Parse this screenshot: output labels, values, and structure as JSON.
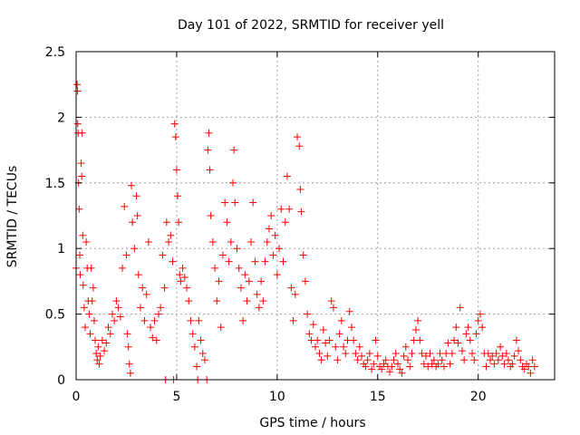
{
  "chart_data": {
    "type": "scatter",
    "title": "Day 101 of 2022, SRMTID for receiver yell",
    "xlabel": "GPS time / hours",
    "ylabel": "SRMTID / TECUs",
    "xlim": [
      0,
      23.8
    ],
    "ylim": [
      0,
      2.5
    ],
    "x_ticks": [
      0,
      5,
      10,
      15,
      20
    ],
    "x_tick_labels": [
      "0",
      "5",
      "10",
      "15",
      "20"
    ],
    "y_ticks": [
      0,
      0.5,
      1,
      1.5,
      2,
      2.5
    ],
    "y_tick_labels": [
      "0",
      "0.5",
      "1",
      "1.5",
      "2",
      "2.5"
    ],
    "grid": true,
    "marker": "+",
    "marker_color": "#ff0000",
    "series": [
      {
        "name": "SRMTID",
        "points": [
          [
            0.0,
            0.85
          ],
          [
            0.05,
            2.25
          ],
          [
            0.07,
            2.2
          ],
          [
            0.08,
            1.95
          ],
          [
            0.1,
            1.88
          ],
          [
            0.12,
            1.5
          ],
          [
            0.15,
            1.3
          ],
          [
            0.18,
            0.95
          ],
          [
            0.2,
            0.8
          ],
          [
            0.25,
            1.65
          ],
          [
            0.28,
            1.55
          ],
          [
            0.3,
            1.88
          ],
          [
            0.33,
            1.1
          ],
          [
            0.35,
            0.72
          ],
          [
            0.4,
            0.55
          ],
          [
            0.45,
            0.4
          ],
          [
            0.5,
            1.05
          ],
          [
            0.55,
            0.85
          ],
          [
            0.6,
            0.6
          ],
          [
            0.65,
            0.5
          ],
          [
            0.7,
            0.35
          ],
          [
            0.75,
            0.85
          ],
          [
            0.8,
            0.6
          ],
          [
            0.85,
            0.7
          ],
          [
            0.9,
            0.45
          ],
          [
            0.95,
            0.3
          ],
          [
            1.0,
            0.2
          ],
          [
            1.05,
            0.15
          ],
          [
            1.1,
            0.25
          ],
          [
            1.15,
            0.12
          ],
          [
            1.2,
            0.18
          ],
          [
            1.3,
            0.3
          ],
          [
            1.4,
            0.22
          ],
          [
            1.5,
            0.28
          ],
          [
            1.6,
            0.4
          ],
          [
            1.7,
            0.35
          ],
          [
            1.8,
            0.5
          ],
          [
            1.9,
            0.45
          ],
          [
            2.0,
            0.6
          ],
          [
            2.1,
            0.55
          ],
          [
            2.2,
            0.48
          ],
          [
            2.3,
            0.85
          ],
          [
            2.4,
            1.32
          ],
          [
            2.5,
            0.95
          ],
          [
            2.55,
            0.35
          ],
          [
            2.6,
            0.25
          ],
          [
            2.65,
            0.12
          ],
          [
            2.7,
            0.05
          ],
          [
            2.75,
            1.48
          ],
          [
            2.8,
            1.2
          ],
          [
            2.9,
            1.0
          ],
          [
            3.0,
            1.4
          ],
          [
            3.05,
            1.25
          ],
          [
            3.1,
            0.8
          ],
          [
            3.2,
            0.55
          ],
          [
            3.3,
            0.7
          ],
          [
            3.4,
            0.45
          ],
          [
            3.5,
            0.65
          ],
          [
            3.6,
            1.05
          ],
          [
            3.7,
            0.4
          ],
          [
            3.8,
            0.32
          ],
          [
            3.9,
            0.45
          ],
          [
            4.0,
            0.3
          ],
          [
            4.1,
            0.5
          ],
          [
            4.2,
            0.55
          ],
          [
            4.3,
            0.95
          ],
          [
            4.4,
            0.7
          ],
          [
            4.45,
            0.0
          ],
          [
            4.5,
            1.2
          ],
          [
            4.6,
            1.05
          ],
          [
            4.7,
            1.1
          ],
          [
            4.8,
            0.9
          ],
          [
            4.85,
            0.0
          ],
          [
            4.9,
            1.95
          ],
          [
            4.95,
            1.85
          ],
          [
            5.0,
            1.6
          ],
          [
            5.05,
            1.4
          ],
          [
            5.1,
            1.2
          ],
          [
            5.15,
            0.8
          ],
          [
            5.2,
            0.75
          ],
          [
            5.3,
            0.85
          ],
          [
            5.4,
            0.78
          ],
          [
            5.5,
            0.7
          ],
          [
            5.6,
            0.6
          ],
          [
            5.7,
            0.45
          ],
          [
            5.8,
            0.35
          ],
          [
            5.9,
            0.25
          ],
          [
            6.0,
            0.1
          ],
          [
            6.05,
            0.0
          ],
          [
            6.1,
            0.45
          ],
          [
            6.2,
            0.3
          ],
          [
            6.3,
            0.2
          ],
          [
            6.4,
            0.15
          ],
          [
            6.5,
            0.0
          ],
          [
            6.55,
            1.75
          ],
          [
            6.6,
            1.88
          ],
          [
            6.65,
            1.6
          ],
          [
            6.7,
            1.25
          ],
          [
            6.8,
            1.05
          ],
          [
            6.9,
            0.85
          ],
          [
            7.0,
            0.6
          ],
          [
            7.1,
            0.75
          ],
          [
            7.2,
            0.4
          ],
          [
            7.3,
            0.95
          ],
          [
            7.4,
            1.35
          ],
          [
            7.5,
            1.2
          ],
          [
            7.6,
            0.9
          ],
          [
            7.7,
            1.05
          ],
          [
            7.8,
            1.5
          ],
          [
            7.85,
            1.75
          ],
          [
            7.9,
            1.35
          ],
          [
            8.0,
            1.0
          ],
          [
            8.1,
            0.85
          ],
          [
            8.2,
            0.7
          ],
          [
            8.3,
            0.45
          ],
          [
            8.4,
            0.8
          ],
          [
            8.5,
            0.6
          ],
          [
            8.6,
            0.75
          ],
          [
            8.7,
            1.05
          ],
          [
            8.8,
            1.35
          ],
          [
            8.9,
            0.9
          ],
          [
            9.0,
            0.65
          ],
          [
            9.1,
            0.55
          ],
          [
            9.2,
            0.75
          ],
          [
            9.3,
            0.6
          ],
          [
            9.4,
            0.9
          ],
          [
            9.5,
            1.05
          ],
          [
            9.6,
            1.15
          ],
          [
            9.7,
            1.25
          ],
          [
            9.8,
            0.95
          ],
          [
            9.9,
            1.1
          ],
          [
            10.0,
            0.8
          ],
          [
            10.1,
            1.0
          ],
          [
            10.2,
            1.3
          ],
          [
            10.3,
            0.9
          ],
          [
            10.4,
            1.2
          ],
          [
            10.5,
            1.55
          ],
          [
            10.6,
            1.3
          ],
          [
            10.7,
            0.7
          ],
          [
            10.8,
            0.45
          ],
          [
            10.9,
            0.65
          ],
          [
            11.0,
            1.85
          ],
          [
            11.1,
            1.78
          ],
          [
            11.15,
            1.45
          ],
          [
            11.2,
            1.28
          ],
          [
            11.3,
            0.95
          ],
          [
            11.4,
            0.75
          ],
          [
            11.5,
            0.5
          ],
          [
            11.6,
            0.35
          ],
          [
            11.7,
            0.3
          ],
          [
            11.8,
            0.42
          ],
          [
            11.9,
            0.25
          ],
          [
            12.0,
            0.3
          ],
          [
            12.1,
            0.2
          ],
          [
            12.2,
            0.15
          ],
          [
            12.3,
            0.38
          ],
          [
            12.4,
            0.28
          ],
          [
            12.5,
            0.18
          ],
          [
            12.6,
            0.3
          ],
          [
            12.7,
            0.6
          ],
          [
            12.8,
            0.55
          ],
          [
            12.9,
            0.25
          ],
          [
            13.0,
            0.15
          ],
          [
            13.1,
            0.35
          ],
          [
            13.2,
            0.45
          ],
          [
            13.3,
            0.25
          ],
          [
            13.4,
            0.2
          ],
          [
            13.5,
            0.3
          ],
          [
            13.6,
            0.52
          ],
          [
            13.7,
            0.4
          ],
          [
            13.8,
            0.3
          ],
          [
            13.9,
            0.2
          ],
          [
            14.0,
            0.15
          ],
          [
            14.1,
            0.25
          ],
          [
            14.2,
            0.18
          ],
          [
            14.3,
            0.12
          ],
          [
            14.4,
            0.1
          ],
          [
            14.5,
            0.15
          ],
          [
            14.6,
            0.2
          ],
          [
            14.7,
            0.08
          ],
          [
            14.8,
            0.12
          ],
          [
            14.9,
            0.3
          ],
          [
            15.0,
            0.18
          ],
          [
            15.1,
            0.1
          ],
          [
            15.2,
            0.08
          ],
          [
            15.3,
            0.12
          ],
          [
            15.4,
            0.15
          ],
          [
            15.5,
            0.1
          ],
          [
            15.6,
            0.06
          ],
          [
            15.7,
            0.1
          ],
          [
            15.8,
            0.15
          ],
          [
            15.9,
            0.2
          ],
          [
            16.0,
            0.12
          ],
          [
            16.1,
            0.08
          ],
          [
            16.2,
            0.05
          ],
          [
            16.3,
            0.18
          ],
          [
            16.4,
            0.25
          ],
          [
            16.5,
            0.15
          ],
          [
            16.6,
            0.1
          ],
          [
            16.7,
            0.2
          ],
          [
            16.8,
            0.3
          ],
          [
            16.9,
            0.38
          ],
          [
            17.0,
            0.45
          ],
          [
            17.1,
            0.3
          ],
          [
            17.2,
            0.2
          ],
          [
            17.3,
            0.12
          ],
          [
            17.4,
            0.18
          ],
          [
            17.5,
            0.1
          ],
          [
            17.6,
            0.2
          ],
          [
            17.7,
            0.12
          ],
          [
            17.8,
            0.15
          ],
          [
            17.9,
            0.1
          ],
          [
            18.0,
            0.12
          ],
          [
            18.1,
            0.2
          ],
          [
            18.2,
            0.15
          ],
          [
            18.3,
            0.1
          ],
          [
            18.4,
            0.2
          ],
          [
            18.5,
            0.28
          ],
          [
            18.6,
            0.12
          ],
          [
            18.7,
            0.2
          ],
          [
            18.8,
            0.3
          ],
          [
            18.9,
            0.4
          ],
          [
            19.0,
            0.28
          ],
          [
            19.1,
            0.55
          ],
          [
            19.2,
            0.22
          ],
          [
            19.3,
            0.15
          ],
          [
            19.4,
            0.35
          ],
          [
            19.5,
            0.4
          ],
          [
            19.6,
            0.3
          ],
          [
            19.7,
            0.2
          ],
          [
            19.8,
            0.15
          ],
          [
            19.9,
            0.35
          ],
          [
            20.0,
            0.45
          ],
          [
            20.1,
            0.5
          ],
          [
            20.2,
            0.4
          ],
          [
            20.3,
            0.2
          ],
          [
            20.4,
            0.1
          ],
          [
            20.5,
            0.2
          ],
          [
            20.6,
            0.15
          ],
          [
            20.7,
            0.18
          ],
          [
            20.8,
            0.12
          ],
          [
            20.9,
            0.2
          ],
          [
            21.0,
            0.15
          ],
          [
            21.1,
            0.25
          ],
          [
            21.2,
            0.18
          ],
          [
            21.3,
            0.12
          ],
          [
            21.4,
            0.2
          ],
          [
            21.5,
            0.15
          ],
          [
            21.6,
            0.1
          ],
          [
            21.7,
            0.12
          ],
          [
            21.8,
            0.18
          ],
          [
            21.9,
            0.3
          ],
          [
            22.0,
            0.22
          ],
          [
            22.1,
            0.15
          ],
          [
            22.2,
            0.1
          ],
          [
            22.3,
            0.08
          ],
          [
            22.4,
            0.12
          ],
          [
            22.5,
            0.1
          ],
          [
            22.6,
            0.05
          ],
          [
            22.7,
            0.15
          ],
          [
            22.8,
            0.1
          ]
        ]
      }
    ]
  }
}
